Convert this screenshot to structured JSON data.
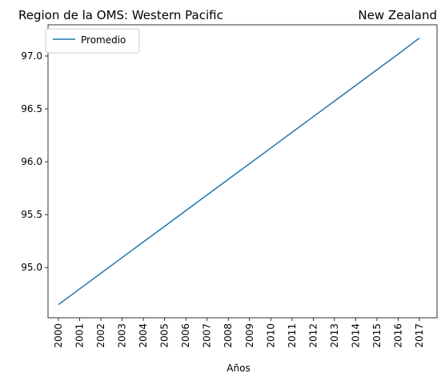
{
  "chart_data": {
    "type": "line",
    "title_left": "Region de la OMS: Western Pacific",
    "title_right": "New Zealand",
    "xlabel": "Años",
    "ylabel": "",
    "x": [
      "2000",
      "2001",
      "2002",
      "2003",
      "2004",
      "2005",
      "2006",
      "2007",
      "2008",
      "2009",
      "2010",
      "2011",
      "2012",
      "2013",
      "2014",
      "2015",
      "2016",
      "2017"
    ],
    "series": [
      {
        "name": "Promedio",
        "color": "#1f77b4",
        "values": [
          94.65,
          94.798,
          94.946,
          95.094,
          95.242,
          95.39,
          95.538,
          95.686,
          95.834,
          95.982,
          96.13,
          96.278,
          96.426,
          96.574,
          96.722,
          96.87,
          97.018,
          97.17
        ]
      }
    ],
    "yticks": [
      "95.0",
      "95.5",
      "96.0",
      "96.5",
      "97.0"
    ],
    "ylim": [
      94.525,
      97.295
    ],
    "grid": false,
    "legend_position": "upper-left"
  }
}
